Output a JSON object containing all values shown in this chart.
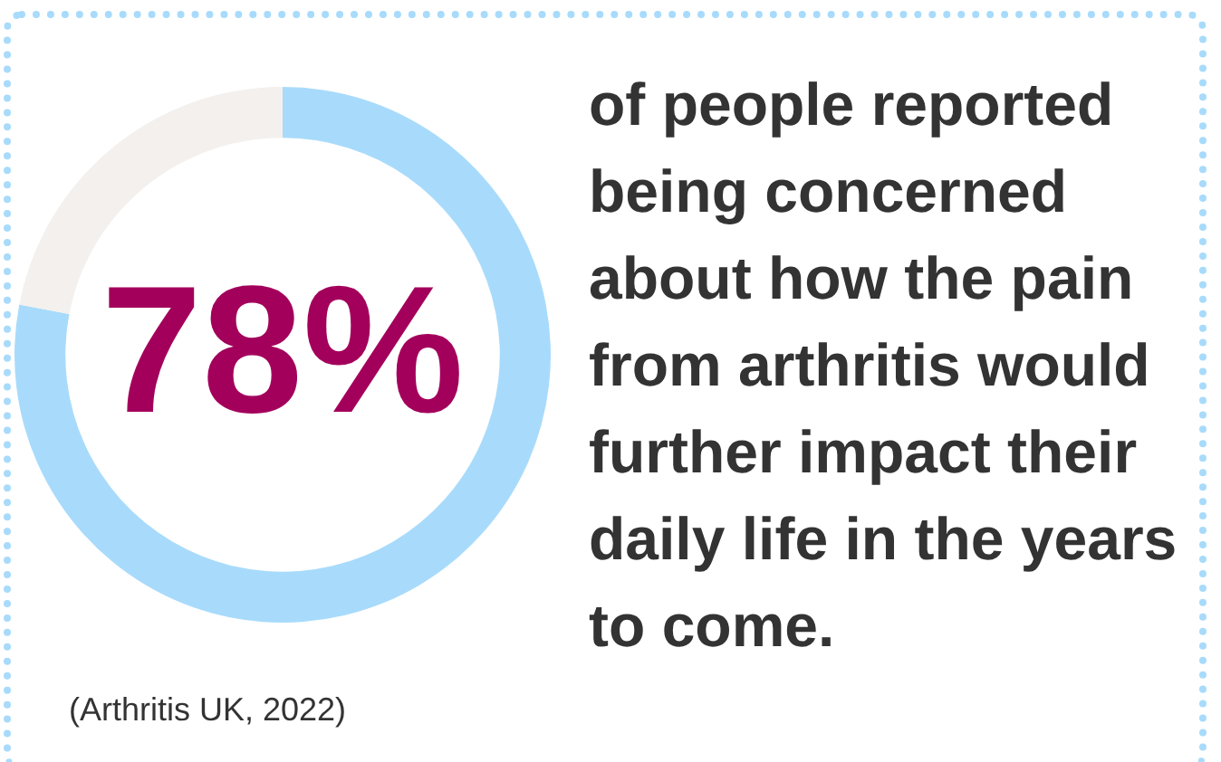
{
  "chart_data": {
    "type": "donut",
    "title": "of people reported being concerned about how the pain from arthritis would further impact their daily life in the years to come.",
    "categories": [
      null,
      null
    ],
    "values": [
      78,
      22
    ],
    "colors": [
      "#a8dbfb",
      "#f4f0ed"
    ],
    "value_labels": [
      "78%",
      null
    ],
    "legend": false,
    "annotations": [
      "(Arthritis UK, 2022)"
    ]
  }
}
